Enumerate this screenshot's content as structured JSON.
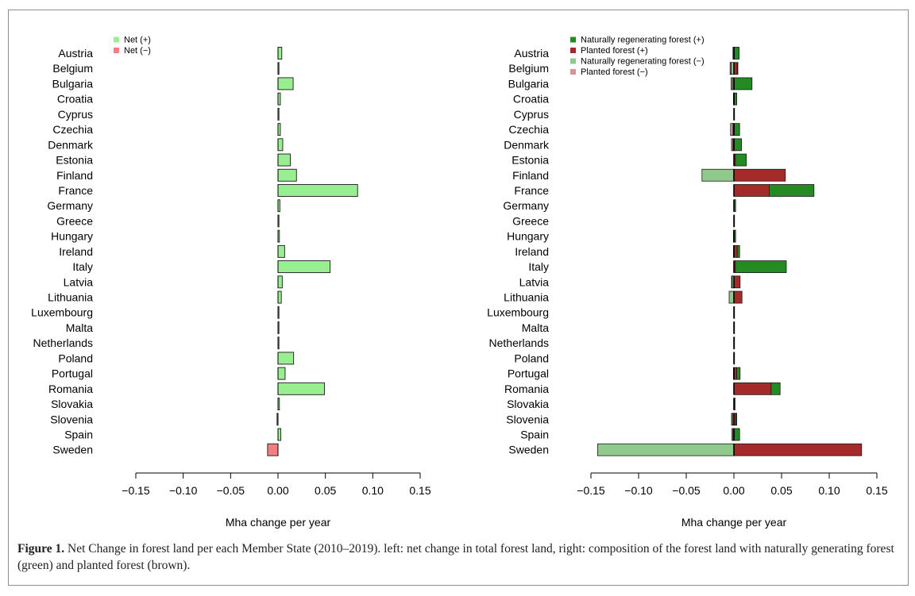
{
  "caption": {
    "label": "Figure 1.",
    "text": "Net Change in forest land per each Member State (2010–2019). left: net change in total forest land, right: composition of the forest land with naturally generating forest (green) and planted forest (brown)."
  },
  "colors": {
    "net_pos": "#98ee90",
    "net_neg": "#f08080",
    "nat_pos": "#238b23",
    "plant_pos": "#a52a2a",
    "nat_neg": "#8fc98c",
    "plant_neg": "#d4949a"
  },
  "chart_data": [
    {
      "type": "bar",
      "orientation": "horizontal",
      "xlabel": "Mha change per year",
      "xlim": [
        -0.15,
        0.15
      ],
      "xticks": [
        -0.15,
        -0.1,
        -0.05,
        0.0,
        0.05,
        0.1,
        0.15
      ],
      "xtick_labels": [
        "−0.15",
        "−0.10",
        "−0.05",
        "0.00",
        "0.05",
        "0.10",
        "0.15"
      ],
      "legend_position": "top-left",
      "legend": [
        {
          "label": "Net (+)",
          "color_key": "net_pos"
        },
        {
          "label": "Net (−)",
          "color_key": "net_neg"
        }
      ],
      "categories": [
        "Austria",
        "Belgium",
        "Bulgaria",
        "Croatia",
        "Cyprus",
        "Czechia",
        "Denmark",
        "Estonia",
        "Finland",
        "France",
        "Germany",
        "Greece",
        "Hungary",
        "Ireland",
        "Italy",
        "Latvia",
        "Lithuania",
        "Luxembourg",
        "Malta",
        "Netherlands",
        "Poland",
        "Portugal",
        "Romania",
        "Slovakia",
        "Slovenia",
        "Spain",
        "Sweden"
      ],
      "series": [
        {
          "name": "Net",
          "values": [
            0.004,
            0.0003,
            0.016,
            0.0025,
            0.0002,
            0.0025,
            0.005,
            0.013,
            0.0195,
            0.084,
            0.002,
            0.0003,
            0.0015,
            0.007,
            0.055,
            0.0045,
            0.0035,
            0.0002,
            0.0001,
            0.0002,
            0.0165,
            0.0075,
            0.049,
            0.0015,
            -0.001,
            0.003,
            -0.011
          ]
        }
      ]
    },
    {
      "type": "bar",
      "orientation": "horizontal",
      "stacked": true,
      "xlabel": "Mha change per year",
      "xlim": [
        -0.15,
        0.15
      ],
      "xticks": [
        -0.15,
        -0.1,
        -0.05,
        0.0,
        0.05,
        0.1,
        0.15
      ],
      "xtick_labels": [
        "−0.15",
        "−0.10",
        "−0.05",
        "0.00",
        "0.05",
        "0.10",
        "0.15"
      ],
      "legend_position": "top-left",
      "legend": [
        {
          "label": "Naturally regenerating forest (+)",
          "color_key": "nat_pos"
        },
        {
          "label": "Planted forest (+)",
          "color_key": "plant_pos"
        },
        {
          "label": "Naturally regenerating forest (−)",
          "color_key": "nat_neg"
        },
        {
          "label": "Planted forest (−)",
          "color_key": "plant_neg"
        }
      ],
      "categories": [
        "Austria",
        "Belgium",
        "Bulgaria",
        "Croatia",
        "Cyprus",
        "Czechia",
        "Denmark",
        "Estonia",
        "Finland",
        "France",
        "Germany",
        "Greece",
        "Hungary",
        "Ireland",
        "Italy",
        "Latvia",
        "Lithuania",
        "Luxembourg",
        "Malta",
        "Netherlands",
        "Poland",
        "Portugal",
        "Romania",
        "Slovakia",
        "Slovenia",
        "Spain",
        "Sweden"
      ],
      "series": [
        {
          "name": "Planted forest (+)",
          "values": [
            0.0005,
            0.0035,
            0.0005,
            0.0005,
            0,
            0.0005,
            0.0005,
            0.0015,
            0.054,
            0.037,
            0.0003,
            0,
            0.0003,
            0.0035,
            0.0015,
            0.0065,
            0.0085,
            0,
            0,
            0,
            0,
            0.003,
            0.039,
            0.0005,
            0.002,
            0.0005,
            0.134
          ]
        },
        {
          "name": "Naturally regenerating forest (+)",
          "values": [
            0.005,
            0.0005,
            0.0185,
            0.0025,
            0.0005,
            0.0055,
            0.0075,
            0.0115,
            0,
            0.047,
            0.0015,
            0.0005,
            0.0015,
            0.0025,
            0.0535,
            0,
            0,
            0.0003,
            0.0003,
            0.0003,
            0.0005,
            0.0035,
            0.0095,
            0.0005,
            0.001,
            0.0055,
            0
          ]
        },
        {
          "name": "Naturally regenerating forest (−)",
          "values": [
            -0.001,
            -0.003,
            -0.0015,
            -0.0005,
            0,
            -0.001,
            -0.001,
            0,
            -0.0335,
            0,
            0,
            0,
            -0.0005,
            -0.0005,
            0,
            -0.002,
            -0.005,
            0,
            0,
            0,
            0,
            -0.0005,
            0,
            0,
            -0.0015,
            -0.001,
            -0.143
          ]
        },
        {
          "name": "Planted forest (−)",
          "values": [
            0,
            -0.001,
            -0.0015,
            0,
            0,
            -0.0025,
            -0.0015,
            0,
            0,
            0,
            0,
            0,
            0,
            0,
            0,
            -0.0005,
            0,
            0,
            0,
            0,
            0,
            0,
            0,
            0,
            -0.001,
            -0.001,
            0
          ]
        }
      ]
    }
  ]
}
